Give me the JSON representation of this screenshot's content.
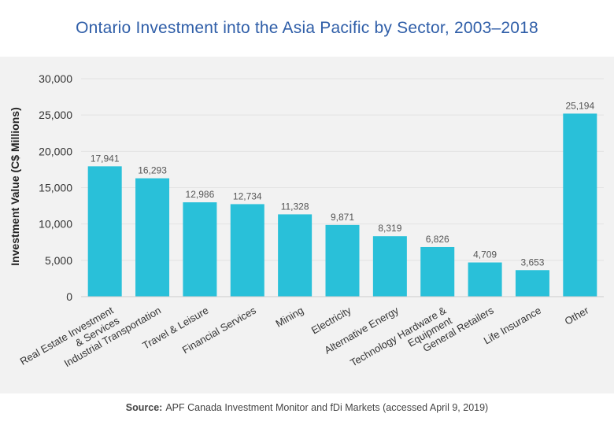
{
  "chart_data": {
    "type": "bar",
    "title": "Ontario Investment into the Asia Pacific by Sector, 2003–2018",
    "ylabel": "Investment Value (C$ Millions)",
    "xlabel": "",
    "categories": [
      [
        "Real Estate Investment",
        "& Services"
      ],
      [
        "Industrial Transportation"
      ],
      [
        "Travel & Leisure"
      ],
      [
        "Financial Services"
      ],
      [
        "Mining"
      ],
      [
        "Electricity"
      ],
      [
        "Alternative Energy"
      ],
      [
        "Technology Hardware &",
        "Equipment"
      ],
      [
        "General Retailers"
      ],
      [
        "Life Insurance"
      ],
      [
        "Other"
      ]
    ],
    "values": [
      17941,
      16293,
      12986,
      12734,
      11328,
      9871,
      8319,
      6826,
      4709,
      3653,
      25194
    ],
    "value_labels": [
      "17,941",
      "16,293",
      "12,986",
      "12,734",
      "11,328",
      "9,871",
      "8,319",
      "6,826",
      "4,709",
      "3,653",
      "25,194"
    ],
    "ylim": [
      0,
      30000
    ],
    "yticks": [
      0,
      5000,
      10000,
      15000,
      20000,
      25000,
      30000
    ],
    "ytick_labels": [
      "0",
      "5,000",
      "10,000",
      "15,000",
      "20,000",
      "25,000",
      "30,000"
    ],
    "grid": true,
    "bar_color": "#29c0d9"
  },
  "source": {
    "label": "Source:",
    "text": "APF Canada Investment Monitor and fDi Markets (accessed April 9, 2019)"
  }
}
